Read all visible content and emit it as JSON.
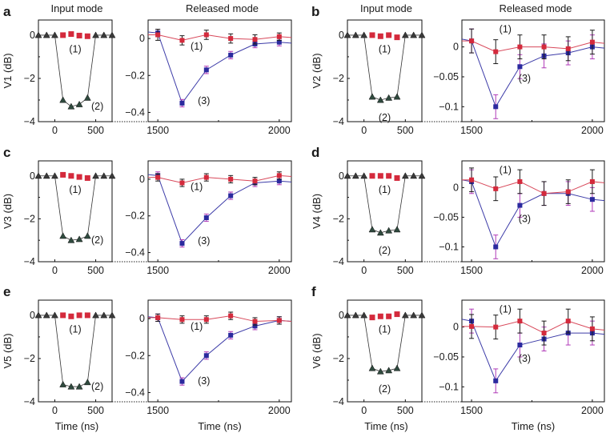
{
  "figure": {
    "column_titles": {
      "input": "Input mode",
      "released": "Released mode"
    },
    "xlabel": "Time (ns)"
  },
  "colors": {
    "series_1": "#d42a3c",
    "series_2": "#2f4a3e",
    "series_3": "#2b2a9e",
    "errbar_1": "#1a1a1a",
    "errbar_3": "#b03ab8",
    "baseline_triangles": "#3a3a3a"
  },
  "chart_data": [
    {
      "panel": "a",
      "ylabel": "V1 (dB)",
      "input": {
        "type": "scatter",
        "xlim": [
          -200,
          700
        ],
        "ylim": [
          -4,
          0.7
        ],
        "xticks": [
          0,
          500
        ],
        "yticks": [
          0,
          -2,
          -4
        ],
        "ytick_labels": [
          "0",
          "−2",
          "−4"
        ],
        "series_1": {
          "label": "(1)",
          "x": [
            100,
            200,
            300,
            400
          ],
          "y": [
            0,
            0.05,
            -0.02,
            -0.05
          ]
        },
        "series_2": {
          "label": "(2)",
          "x": [
            -200,
            -100,
            0,
            100,
            200,
            300,
            400,
            500,
            600,
            700
          ],
          "y": [
            0,
            0,
            0,
            -3.0,
            -3.3,
            -3.2,
            -2.9,
            0,
            0,
            0
          ]
        }
      },
      "released": {
        "type": "line",
        "xlim": [
          1460,
          2050
        ],
        "ylim": [
          -0.45,
          0.1
        ],
        "xticks": [
          1500,
          2000
        ],
        "yticks": [
          0,
          -0.2,
          -0.4
        ],
        "ytick_labels": [
          "0",
          "−0.2",
          "−0.4"
        ],
        "series_1": {
          "label": "(1)",
          "x": [
            1500,
            1600,
            1700,
            1800,
            1900,
            2000
          ],
          "y": [
            0.02,
            -0.01,
            0.02,
            0,
            -0.005,
            0.01
          ],
          "err": [
            0.03,
            0.025,
            0.025,
            0.025,
            0.025,
            0.02
          ]
        },
        "series_3": {
          "label": "(3)",
          "x": [
            1500,
            1600,
            1700,
            1800,
            1900,
            2000
          ],
          "y": [
            0.03,
            -0.35,
            -0.17,
            -0.09,
            -0.03,
            -0.02
          ],
          "err": [
            0.02,
            0.02,
            0.02,
            0.02,
            0.02,
            0.02
          ]
        }
      }
    },
    {
      "panel": "b",
      "ylabel": "V2 (dB)",
      "input": {
        "type": "scatter",
        "xlim": [
          -200,
          700
        ],
        "ylim": [
          -4,
          0.7
        ],
        "xticks": [
          0,
          500
        ],
        "yticks": [
          0,
          -2,
          -4
        ],
        "ytick_labels": [
          "0",
          "−2",
          "−4"
        ],
        "series_1": {
          "label": "(1)",
          "x": [
            100,
            200,
            300,
            400
          ],
          "y": [
            0,
            -0.05,
            0,
            -0.1
          ]
        },
        "series_2": {
          "label": "(2)",
          "x": [
            -200,
            -100,
            0,
            100,
            200,
            300,
            400,
            500,
            600,
            700
          ],
          "y": [
            0,
            0,
            0,
            -2.85,
            -3.0,
            -2.9,
            -2.85,
            0,
            0,
            0
          ]
        }
      },
      "released": {
        "type": "line",
        "xlim": [
          1460,
          2050
        ],
        "ylim": [
          -0.125,
          0.045
        ],
        "xticks": [
          1500,
          2000
        ],
        "yticks": [
          0,
          -0.05,
          -0.1
        ],
        "ytick_labels": [
          "0",
          "−0.05",
          "−0.1"
        ],
        "series_1": {
          "label": "(1)",
          "x": [
            1500,
            1600,
            1700,
            1800,
            1900,
            2000
          ],
          "y": [
            0.01,
            -0.008,
            0,
            0,
            -0.003,
            0.008
          ],
          "err": [
            0.02,
            0.02,
            0.02,
            0.02,
            0.02,
            0.02
          ]
        },
        "series_3": {
          "label": "(3)",
          "x": [
            1500,
            1600,
            1700,
            1800,
            1900,
            2000
          ],
          "y": [
            0.01,
            -0.1,
            -0.033,
            -0.015,
            -0.01,
            0
          ],
          "err": [
            0.02,
            0.02,
            0.02,
            0.02,
            0.02,
            0.02
          ]
        }
      }
    },
    {
      "panel": "c",
      "ylabel": "V3 (dB)",
      "input": {
        "type": "scatter",
        "xlim": [
          -200,
          700
        ],
        "ylim": [
          -4,
          0.7
        ],
        "xticks": [
          0,
          500
        ],
        "yticks": [
          0,
          -2,
          -4
        ],
        "ytick_labels": [
          "0",
          "−2",
          "−4"
        ],
        "series_1": {
          "label": "(1)",
          "x": [
            100,
            200,
            300,
            400
          ],
          "y": [
            0.05,
            0,
            -0.05,
            -0.1
          ]
        },
        "series_2": {
          "label": "(2)",
          "x": [
            -200,
            -100,
            0,
            100,
            200,
            300,
            400,
            500,
            600,
            700
          ],
          "y": [
            0,
            0,
            0,
            -2.8,
            -3.0,
            -2.95,
            -2.8,
            0,
            0,
            0
          ]
        }
      },
      "released": {
        "type": "line",
        "xlim": [
          1460,
          2050
        ],
        "ylim": [
          -0.45,
          0.1
        ],
        "xticks": [
          1500,
          2000
        ],
        "yticks": [
          0,
          -0.2,
          -0.4
        ],
        "ytick_labels": [
          "0",
          "−0.2",
          "−0.4"
        ],
        "series_1": {
          "label": "(1)",
          "x": [
            1500,
            1600,
            1700,
            1800,
            1900,
            2000
          ],
          "y": [
            0.01,
            -0.02,
            0.01,
            0,
            -0.01,
            0.02
          ],
          "err": [
            0.02,
            0.02,
            0.02,
            0.02,
            0.02,
            0.02
          ]
        },
        "series_3": {
          "label": "(3)",
          "x": [
            1500,
            1600,
            1700,
            1800,
            1900,
            2000
          ],
          "y": [
            0.02,
            -0.35,
            -0.21,
            -0.09,
            -0.02,
            -0.01
          ],
          "err": [
            0.02,
            0.02,
            0.02,
            0.02,
            0.02,
            0.02
          ]
        }
      }
    },
    {
      "panel": "d",
      "ylabel": "V4 (dB)",
      "input": {
        "type": "scatter",
        "xlim": [
          -200,
          700
        ],
        "ylim": [
          -4,
          0.7
        ],
        "xticks": [
          0,
          500
        ],
        "yticks": [
          0,
          -2,
          -4
        ],
        "ytick_labels": [
          "0",
          "−2",
          "−4"
        ],
        "series_1": {
          "label": "(1)",
          "x": [
            100,
            200,
            300,
            400
          ],
          "y": [
            0,
            0,
            0,
            -0.1
          ]
        },
        "series_2": {
          "label": "(2)",
          "x": [
            -200,
            -100,
            0,
            100,
            200,
            300,
            400,
            500,
            600,
            700
          ],
          "y": [
            0,
            0,
            0,
            -2.5,
            -2.65,
            -2.55,
            -2.5,
            0,
            0,
            0
          ]
        }
      },
      "released": {
        "type": "line",
        "xlim": [
          1460,
          2050
        ],
        "ylim": [
          -0.125,
          0.045
        ],
        "xticks": [
          1500,
          2000
        ],
        "yticks": [
          0,
          -0.05,
          -0.1
        ],
        "ytick_labels": [
          "0",
          "−0.05",
          "−0.1"
        ],
        "series_1": {
          "label": "(1)",
          "x": [
            1500,
            1600,
            1700,
            1800,
            1900,
            2000
          ],
          "y": [
            0.013,
            -0.002,
            0.01,
            -0.01,
            -0.007,
            0.01
          ],
          "err": [
            0.02,
            0.02,
            0.02,
            0.02,
            0.02,
            0.02
          ]
        },
        "series_3": {
          "label": "(3)",
          "x": [
            1500,
            1600,
            1700,
            1800,
            1900,
            2000
          ],
          "y": [
            0.01,
            -0.1,
            -0.03,
            -0.01,
            -0.01,
            -0.02
          ],
          "err": [
            0.02,
            0.02,
            0.02,
            0.02,
            0.02,
            0.02
          ]
        }
      }
    },
    {
      "panel": "e",
      "ylabel": "V5 (dB)",
      "input": {
        "type": "scatter",
        "xlim": [
          -200,
          700
        ],
        "ylim": [
          -4,
          0.7
        ],
        "xticks": [
          0,
          500
        ],
        "yticks": [
          0,
          -2,
          -4
        ],
        "ytick_labels": [
          "0",
          "−2",
          "−4"
        ],
        "series_1": {
          "label": "(1)",
          "x": [
            100,
            200,
            300,
            400
          ],
          "y": [
            0,
            -0.05,
            0,
            0
          ]
        },
        "series_2": {
          "label": "(2)",
          "x": [
            -200,
            -100,
            0,
            100,
            200,
            300,
            400,
            500,
            600,
            700
          ],
          "y": [
            0,
            0,
            0,
            -3.2,
            -3.3,
            -3.3,
            -3.1,
            0,
            0,
            0
          ]
        }
      },
      "released": {
        "type": "line",
        "xlim": [
          1460,
          2050
        ],
        "ylim": [
          -0.45,
          0.1
        ],
        "xticks": [
          1500,
          2000
        ],
        "yticks": [
          0,
          -0.2,
          -0.4
        ],
        "ytick_labels": [
          "0",
          "−0.2",
          "−0.4"
        ],
        "series_1": {
          "label": "(1)",
          "x": [
            1500,
            1600,
            1700,
            1800,
            1900,
            2000
          ],
          "y": [
            0.005,
            -0.005,
            -0.005,
            0.015,
            -0.015,
            -0.01
          ],
          "err": [
            0.02,
            0.02,
            0.02,
            0.02,
            0.02,
            0.02
          ]
        },
        "series_3": {
          "label": "(3)",
          "x": [
            1500,
            1600,
            1700,
            1800,
            1900,
            2000
          ],
          "y": [
            0.005,
            -0.34,
            -0.2,
            -0.09,
            -0.04,
            -0.01
          ],
          "err": [
            0.02,
            0.02,
            0.02,
            0.02,
            0.02,
            0.02
          ]
        }
      }
    },
    {
      "panel": "f",
      "ylabel": "V6 (dB)",
      "input": {
        "type": "scatter",
        "xlim": [
          -200,
          700
        ],
        "ylim": [
          -4,
          0.7
        ],
        "xticks": [
          0,
          500
        ],
        "yticks": [
          0,
          -2,
          -4
        ],
        "ytick_labels": [
          "0",
          "−2",
          "−4"
        ],
        "series_1": {
          "label": "(1)",
          "x": [
            100,
            200,
            300,
            400
          ],
          "y": [
            -0.1,
            -0.05,
            -0.05,
            0.05
          ]
        },
        "series_2": {
          "label": "(2)",
          "x": [
            -200,
            -100,
            0,
            100,
            200,
            300,
            400,
            500,
            600,
            700
          ],
          "y": [
            0,
            0,
            0,
            -2.45,
            -2.6,
            -2.55,
            -2.45,
            0,
            0,
            0
          ]
        }
      },
      "released": {
        "type": "line",
        "xlim": [
          1460,
          2050
        ],
        "ylim": [
          -0.125,
          0.045
        ],
        "xticks": [
          1500,
          2000
        ],
        "yticks": [
          0,
          -0.05,
          -0.1
        ],
        "ytick_labels": [
          "0",
          "−0.05",
          "−0.1"
        ],
        "series_1": {
          "label": "(1)",
          "x": [
            1500,
            1600,
            1700,
            1800,
            1900,
            2000
          ],
          "y": [
            0.001,
            0,
            0.01,
            -0.01,
            0.01,
            -0.003
          ],
          "err": [
            0.02,
            0.02,
            0.02,
            0.02,
            0.02,
            0.02
          ]
        },
        "series_3": {
          "label": "(3)",
          "x": [
            1500,
            1600,
            1700,
            1800,
            1900,
            2000
          ],
          "y": [
            0.01,
            -0.09,
            -0.03,
            -0.02,
            -0.01,
            -0.01
          ],
          "err": [
            0.02,
            0.02,
            0.02,
            0.02,
            0.02,
            0.02
          ]
        }
      }
    }
  ]
}
